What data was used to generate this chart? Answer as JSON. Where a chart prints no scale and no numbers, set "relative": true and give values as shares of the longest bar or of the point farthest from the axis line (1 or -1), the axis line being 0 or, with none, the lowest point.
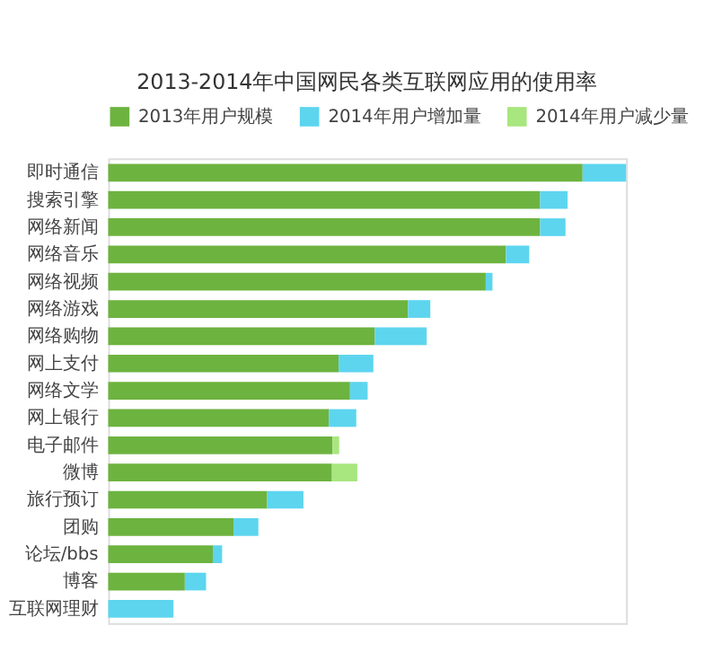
{
  "chart_data": {
    "type": "bar",
    "orientation": "horizontal",
    "stacked": true,
    "relative": true,
    "title": "2013-2014年中国网民各类互联网应用的使用率",
    "legend": "top",
    "categories": [
      "即时通信",
      "搜索引擎",
      "网络新闻",
      "网络音乐",
      "网络视频",
      "网络游戏",
      "网络购物",
      "网上支付",
      "网络文学",
      "网上银行",
      "电子邮件",
      "微博",
      "旅行预订",
      "团购",
      "论坛/bbs",
      "博客",
      "互联网理财"
    ],
    "series": [
      {
        "name": "2013年用户规模",
        "color": "#6db33f",
        "values": [
          0.916,
          0.834,
          0.834,
          0.768,
          0.729,
          0.579,
          0.515,
          0.445,
          0.467,
          0.426,
          0.433,
          0.432,
          0.307,
          0.242,
          0.202,
          0.148,
          null
        ]
      },
      {
        "name": "2014年用户增加量",
        "color": "#5dd5ef",
        "values": [
          0.084,
          0.053,
          0.049,
          0.045,
          0.013,
          0.043,
          0.1,
          0.067,
          0.034,
          0.053,
          null,
          null,
          0.07,
          0.048,
          0.018,
          0.041,
          0.126
        ]
      },
      {
        "name": "2014年用户减少量",
        "color": "#a8e67f",
        "values": [
          null,
          null,
          null,
          null,
          null,
          null,
          null,
          null,
          null,
          null,
          0.013,
          0.049,
          null,
          null,
          null,
          null,
          null
        ]
      }
    ]
  }
}
